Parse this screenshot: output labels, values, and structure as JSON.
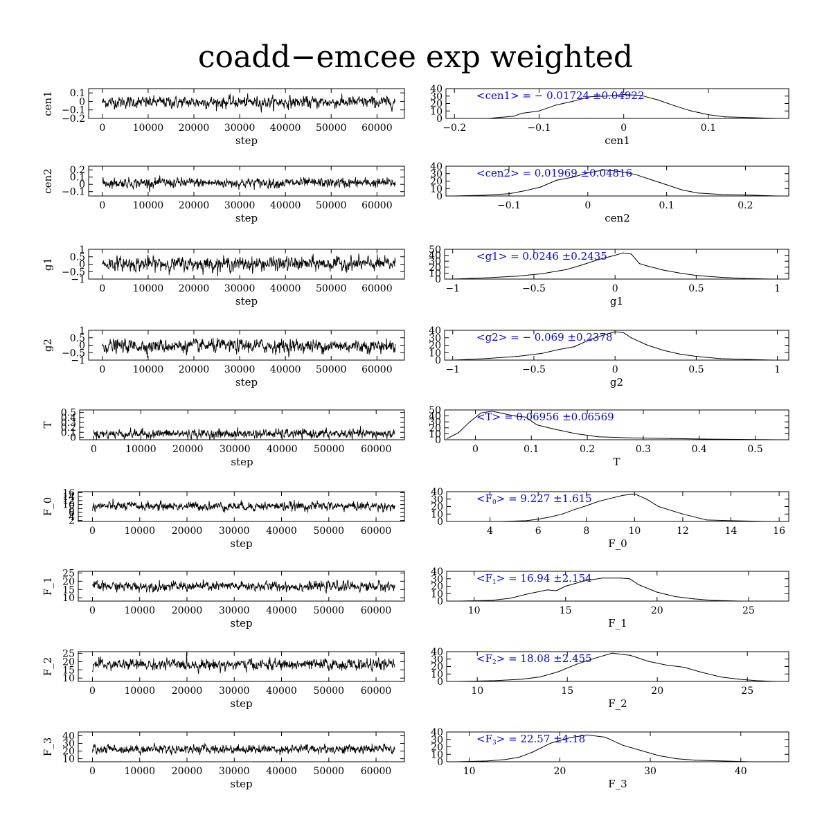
{
  "title": "coadd−emcee exp weighted",
  "colors": {
    "trace": "#000000",
    "stat": "#0000ff",
    "axes": "#000000"
  },
  "chart_data": [
    {
      "type": "line",
      "panel": "trace",
      "param": "cen1",
      "xlabel": "step",
      "ylabel": "cen1",
      "xlim": [
        -3000,
        66000
      ],
      "ylim": [
        -0.2,
        0.15
      ],
      "xticks": [
        0,
        10000,
        20000,
        30000,
        40000,
        50000,
        60000
      ],
      "xtick_labels": [
        "0",
        "10000",
        "20000",
        "30000",
        "40000",
        "50000",
        "60000"
      ],
      "yticks": [
        -0.2,
        -0.1,
        0,
        0.1
      ],
      "ytick_labels": [
        "−0.2",
        "−0.1",
        "0",
        "0.1"
      ],
      "series": [
        {
          "x_range": [
            0,
            64000
          ],
          "center": -0.01,
          "sigma": 0.049
        }
      ]
    },
    {
      "type": "line",
      "panel": "histogram",
      "param": "cen1",
      "xlabel": "cen1",
      "ylabel": "",
      "xlim": [
        -0.21,
        0.195
      ],
      "ylim": [
        0,
        40
      ],
      "xticks": [
        -0.2,
        -0.1,
        0,
        0.1
      ],
      "xtick_labels": [
        "−0.2",
        "−0.1",
        "0",
        "0.1"
      ],
      "yticks": [
        0,
        10,
        20,
        30,
        40
      ],
      "ytick_labels": [
        "0",
        "10",
        "20",
        "30",
        "40"
      ],
      "annotation": {
        "mean": "− 0.01724",
        "err": "0.04922",
        "sym": "cen1"
      },
      "x": [
        -0.19,
        -0.16,
        -0.13,
        -0.12,
        -0.1,
        -0.08,
        -0.06,
        -0.04,
        -0.02,
        0.0,
        0.02,
        0.04,
        0.06,
        0.08,
        0.1,
        0.12,
        0.15,
        0.18
      ],
      "values": [
        0,
        0,
        3,
        7,
        10,
        18,
        23,
        29,
        30,
        32,
        31,
        25,
        17,
        10,
        5,
        2,
        1,
        0
      ]
    },
    {
      "type": "line",
      "panel": "trace",
      "param": "cen2",
      "xlabel": "step",
      "ylabel": "cen2",
      "xlim": [
        -3000,
        66000
      ],
      "ylim": [
        -0.16,
        0.25
      ],
      "xticks": [
        0,
        10000,
        20000,
        30000,
        40000,
        50000,
        60000
      ],
      "xtick_labels": [
        "0",
        "10000",
        "20000",
        "30000",
        "40000",
        "50000",
        "60000"
      ],
      "yticks": [
        -0.1,
        0,
        0.1,
        0.2
      ],
      "ytick_labels": [
        "−0.1",
        "0",
        "0.1",
        "0.2"
      ],
      "series": [
        {
          "x_range": [
            0,
            64000
          ],
          "center": 0.02,
          "sigma": 0.048
        }
      ]
    },
    {
      "type": "line",
      "panel": "histogram",
      "param": "cen2",
      "xlabel": "cen2",
      "ylabel": "",
      "xlim": [
        -0.18,
        0.255
      ],
      "ylim": [
        0,
        40
      ],
      "xticks": [
        -0.1,
        0,
        0.1,
        0.2
      ],
      "xtick_labels": [
        "−0.1",
        "0",
        "0.1",
        "0.2"
      ],
      "yticks": [
        0,
        10,
        20,
        30,
        40
      ],
      "ytick_labels": [
        "0",
        "10",
        "20",
        "30",
        "40"
      ],
      "annotation": {
        "mean": "0.01969",
        "err": "0.04816",
        "sym": "cen2"
      },
      "x": [
        -0.17,
        -0.13,
        -0.1,
        -0.08,
        -0.06,
        -0.04,
        -0.02,
        0.0,
        0.02,
        0.04,
        0.06,
        0.08,
        0.1,
        0.12,
        0.14,
        0.17,
        0.21,
        0.24
      ],
      "values": [
        0,
        1,
        3,
        7,
        12,
        21,
        25,
        31,
        35,
        33,
        29,
        22,
        15,
        8,
        4,
        2,
        1,
        0
      ]
    },
    {
      "type": "line",
      "panel": "trace",
      "param": "g1",
      "xlabel": "step",
      "ylabel": "g1",
      "xlim": [
        -3000,
        66000
      ],
      "ylim": [
        -1,
        1
      ],
      "xticks": [
        0,
        10000,
        20000,
        30000,
        40000,
        50000,
        60000
      ],
      "xtick_labels": [
        "0",
        "10000",
        "20000",
        "30000",
        "40000",
        "50000",
        "60000"
      ],
      "yticks": [
        -1,
        -0.5,
        0,
        0.5,
        1
      ],
      "ytick_labels": [
        "−1",
        "−0.5",
        "0",
        "0.5",
        "1"
      ],
      "series": [
        {
          "x_range": [
            0,
            64000
          ],
          "center": 0.02,
          "sigma": 0.33
        }
      ]
    },
    {
      "type": "line",
      "panel": "histogram",
      "param": "g1",
      "xlabel": "g1",
      "ylabel": "",
      "xlim": [
        -1.05,
        1.07
      ],
      "ylim": [
        0,
        50
      ],
      "xticks": [
        -1,
        -0.5,
        0,
        0.5,
        1
      ],
      "xtick_labels": [
        "−1",
        "−0.5",
        "0",
        "0.5",
        "1"
      ],
      "yticks": [
        0,
        10,
        20,
        30,
        40,
        50
      ],
      "ytick_labels": [
        "0",
        "10",
        "20",
        "30",
        "40",
        "50"
      ],
      "annotation": {
        "mean": "0.0246",
        "err": "0.2435",
        "sym": "g1"
      },
      "x": [
        -1.0,
        -0.8,
        -0.6,
        -0.45,
        -0.3,
        -0.2,
        -0.1,
        0.0,
        0.05,
        0.1,
        0.15,
        0.2,
        0.3,
        0.4,
        0.5,
        0.65,
        0.8,
        0.97
      ],
      "values": [
        0,
        2,
        5,
        9,
        16,
        24,
        33,
        40,
        44,
        42,
        26,
        22,
        15,
        10,
        6,
        3,
        1,
        0
      ]
    },
    {
      "type": "line",
      "panel": "trace",
      "param": "g2",
      "xlabel": "step",
      "ylabel": "g2",
      "xlim": [
        -3000,
        66000
      ],
      "ylim": [
        -1,
        1
      ],
      "xticks": [
        0,
        10000,
        20000,
        30000,
        40000,
        50000,
        60000
      ],
      "xtick_labels": [
        "0",
        "10000",
        "20000",
        "30000",
        "40000",
        "50000",
        "60000"
      ],
      "yticks": [
        -1,
        -0.5,
        0,
        0.5,
        1
      ],
      "ytick_labels": [
        "−1",
        "−0.5",
        "0",
        "0.5",
        "1"
      ],
      "series": [
        {
          "x_range": [
            0,
            64000
          ],
          "center": -0.05,
          "sigma": 0.32
        }
      ]
    },
    {
      "type": "line",
      "panel": "histogram",
      "param": "g2",
      "xlabel": "g2",
      "ylabel": "",
      "xlim": [
        -1.05,
        1.07
      ],
      "ylim": [
        0,
        40
      ],
      "xticks": [
        -1,
        -0.5,
        0,
        0.5,
        1
      ],
      "xtick_labels": [
        "−1",
        "−0.5",
        "0",
        "0.5",
        "1"
      ],
      "yticks": [
        0,
        10,
        20,
        30,
        40
      ],
      "ytick_labels": [
        "0",
        "10",
        "20",
        "30",
        "40"
      ],
      "annotation": {
        "mean": "− 0.069",
        "err": "0.2378",
        "sym": "g2"
      },
      "x": [
        -1.0,
        -0.8,
        -0.6,
        -0.45,
        -0.35,
        -0.25,
        -0.15,
        -0.05,
        0.0,
        0.05,
        0.1,
        0.2,
        0.3,
        0.4,
        0.5,
        0.65,
        0.8,
        0.97
      ],
      "values": [
        0,
        2,
        5,
        9,
        14,
        18,
        28,
        35,
        38,
        37,
        30,
        20,
        13,
        8,
        5,
        2,
        1,
        0
      ]
    },
    {
      "type": "line",
      "panel": "trace",
      "param": "T",
      "xlabel": "step",
      "ylabel": "T",
      "xlim": [
        -3000,
        66000
      ],
      "ylim": [
        -0.05,
        0.55
      ],
      "xticks": [
        0,
        10000,
        20000,
        30000,
        40000,
        50000,
        60000
      ],
      "xtick_labels": [
        "0",
        "10000",
        "20000",
        "30000",
        "40000",
        "50000",
        "60000"
      ],
      "yticks": [
        0,
        0.1,
        0.2,
        0.3,
        0.4,
        0.5
      ],
      "ytick_labels": [
        "0",
        "0.1",
        "0.2",
        "0.3",
        "0.4",
        "0.5"
      ],
      "series": [
        {
          "x_range": [
            0,
            64000
          ],
          "center": 0.07,
          "sigma": 0.065
        }
      ]
    },
    {
      "type": "line",
      "panel": "histogram",
      "param": "T",
      "xlabel": "T",
      "ylabel": "",
      "xlim": [
        -0.055,
        0.56
      ],
      "ylim": [
        0,
        50
      ],
      "xticks": [
        0,
        0.1,
        0.2,
        0.3,
        0.4,
        0.5
      ],
      "xtick_labels": [
        "0",
        "0.1",
        "0.2",
        "0.3",
        "0.4",
        "0.5"
      ],
      "yticks": [
        0,
        10,
        20,
        30,
        40,
        50
      ],
      "ytick_labels": [
        "0",
        "10",
        "20",
        "30",
        "40",
        "50"
      ],
      "annotation": {
        "mean": "0.06956",
        "err": "0.06569",
        "sym": "T"
      },
      "x": [
        -0.05,
        -0.03,
        -0.01,
        0.01,
        0.03,
        0.05,
        0.07,
        0.09,
        0.11,
        0.14,
        0.18,
        0.22,
        0.28,
        0.35,
        0.42,
        0.54
      ],
      "values": [
        2,
        12,
        30,
        45,
        48,
        44,
        40,
        38,
        25,
        18,
        10,
        5,
        3,
        2,
        1,
        0
      ]
    },
    {
      "type": "line",
      "panel": "trace",
      "param": "F_0",
      "xlabel": "step",
      "ylabel": "F_0",
      "xlim": [
        -3000,
        66000
      ],
      "ylim": [
        1.5,
        16.5
      ],
      "xticks": [
        0,
        10000,
        20000,
        30000,
        40000,
        50000,
        60000
      ],
      "xtick_labels": [
        "0",
        "10000",
        "20000",
        "30000",
        "40000",
        "50000",
        "60000"
      ],
      "yticks": [
        2,
        4,
        6,
        8,
        10,
        12,
        14,
        16
      ],
      "ytick_labels": [
        "2",
        "4",
        "6",
        "8",
        "10",
        "12",
        "14",
        "16"
      ],
      "series": [
        {
          "x_range": [
            0,
            64000
          ],
          "center": 9.2,
          "sigma": 1.6
        }
      ]
    },
    {
      "type": "line",
      "panel": "histogram",
      "param": "F_0",
      "xlabel": "F_0",
      "ylabel": "",
      "xlim": [
        2.2,
        16.4
      ],
      "ylim": [
        0,
        40
      ],
      "xticks": [
        4,
        6,
        8,
        10,
        12,
        14,
        16
      ],
      "xtick_labels": [
        "4",
        "6",
        "8",
        "10",
        "12",
        "14",
        "16"
      ],
      "yticks": [
        0,
        10,
        20,
        30,
        40
      ],
      "ytick_labels": [
        "0",
        "10",
        "20",
        "30",
        "40"
      ],
      "annotation": {
        "mean": "9.227",
        "err": "1.615",
        "sym": "F",
        "sub": "0"
      },
      "x": [
        2.8,
        4.5,
        5.5,
        6.0,
        6.5,
        7.0,
        7.5,
        8.0,
        8.5,
        9.0,
        9.5,
        10.0,
        10.5,
        11.0,
        12.0,
        13.0,
        14.0,
        15.5
      ],
      "values": [
        0,
        0,
        1,
        3,
        6,
        10,
        16,
        21,
        27,
        31,
        35,
        37,
        30,
        20,
        10,
        2,
        1,
        0
      ]
    },
    {
      "type": "line",
      "panel": "trace",
      "param": "F_1",
      "xlabel": "step",
      "ylabel": "F_1",
      "xlim": [
        -3000,
        66000
      ],
      "ylim": [
        8,
        26
      ],
      "xticks": [
        0,
        10000,
        20000,
        30000,
        40000,
        50000,
        60000
      ],
      "xtick_labels": [
        "0",
        "10000",
        "20000",
        "30000",
        "40000",
        "50000",
        "60000"
      ],
      "yticks": [
        10,
        15,
        20,
        25
      ],
      "ytick_labels": [
        "10",
        "15",
        "20",
        "25"
      ],
      "series": [
        {
          "x_range": [
            0,
            64000
          ],
          "center": 16.9,
          "sigma": 2.1
        }
      ]
    },
    {
      "type": "line",
      "panel": "histogram",
      "param": "F_1",
      "xlabel": "F_1",
      "ylabel": "",
      "xlim": [
        8.5,
        27.2
      ],
      "ylim": [
        0,
        40
      ],
      "xticks": [
        10,
        15,
        20,
        25
      ],
      "xtick_labels": [
        "10",
        "15",
        "20",
        "25"
      ],
      "yticks": [
        0,
        10,
        20,
        30,
        40
      ],
      "ytick_labels": [
        "0",
        "10",
        "20",
        "30",
        "40"
      ],
      "annotation": {
        "mean": "16.94",
        "err": "2.154",
        "sym": "F",
        "sub": "1"
      },
      "x": [
        9.2,
        11.0,
        12.0,
        13.0,
        14.0,
        14.5,
        15.0,
        16.0,
        17.0,
        18.0,
        18.5,
        19.0,
        20.0,
        21.0,
        22.0,
        23.0,
        24.5,
        26.2
      ],
      "values": [
        0,
        1,
        4,
        10,
        15,
        14,
        20,
        27,
        31,
        31,
        30,
        22,
        12,
        6,
        3,
        1,
        0,
        0
      ]
    },
    {
      "type": "line",
      "panel": "trace",
      "param": "F_2",
      "xlabel": "step",
      "ylabel": "F_2",
      "xlim": [
        -3000,
        66000
      ],
      "ylim": [
        8,
        26
      ],
      "xticks": [
        0,
        10000,
        20000,
        30000,
        40000,
        50000,
        60000
      ],
      "xtick_labels": [
        "0",
        "10000",
        "20000",
        "30000",
        "40000",
        "50000",
        "60000"
      ],
      "yticks": [
        10,
        15,
        20,
        25
      ],
      "ytick_labels": [
        "10",
        "15",
        "20",
        "25"
      ],
      "series": [
        {
          "x_range": [
            0,
            64000
          ],
          "center": 18.1,
          "sigma": 2.4
        }
      ]
    },
    {
      "type": "line",
      "panel": "histogram",
      "param": "F_2",
      "xlabel": "F_2",
      "ylabel": "",
      "xlim": [
        8.3,
        27.3
      ],
      "ylim": [
        0,
        40
      ],
      "xticks": [
        10,
        15,
        20,
        25
      ],
      "xtick_labels": [
        "10",
        "15",
        "20",
        "25"
      ],
      "yticks": [
        0,
        10,
        20,
        30,
        40
      ],
      "ytick_labels": [
        "0",
        "10",
        "20",
        "30",
        "40"
      ],
      "annotation": {
        "mean": "18.08",
        "err": "2.455",
        "sym": "F",
        "sub": "2"
      },
      "x": [
        9.0,
        11.0,
        12.5,
        13.5,
        14.5,
        15.5,
        16.5,
        17.5,
        18.5,
        19.5,
        20.5,
        21.5,
        22.5,
        23.5,
        24.5,
        25.5,
        26.5
      ],
      "values": [
        0,
        1,
        3,
        6,
        13,
        23,
        31,
        38,
        35,
        27,
        22,
        19,
        12,
        6,
        3,
        1,
        0
      ]
    },
    {
      "type": "line",
      "panel": "trace",
      "param": "F_3",
      "xlabel": "step",
      "ylabel": "F_3",
      "xlim": [
        -3000,
        66000
      ],
      "ylim": [
        6,
        45
      ],
      "xticks": [
        0,
        10000,
        20000,
        30000,
        40000,
        50000,
        60000
      ],
      "xtick_labels": [
        "0",
        "10000",
        "20000",
        "30000",
        "40000",
        "50000",
        "60000"
      ],
      "yticks": [
        10,
        20,
        30,
        40
      ],
      "ytick_labels": [
        "10",
        "20",
        "30",
        "40"
      ],
      "series": [
        {
          "x_range": [
            0,
            64000
          ],
          "center": 22.6,
          "sigma": 4.2
        }
      ]
    },
    {
      "type": "line",
      "panel": "histogram",
      "param": "F_3",
      "xlabel": "F_3",
      "ylabel": "",
      "xlim": [
        7.5,
        45.3
      ],
      "ylim": [
        0,
        40
      ],
      "xticks": [
        10,
        20,
        30,
        40
      ],
      "xtick_labels": [
        "10",
        "20",
        "30",
        "40"
      ],
      "yticks": [
        0,
        10,
        20,
        30,
        40
      ],
      "ytick_labels": [
        "0",
        "10",
        "20",
        "30",
        "40"
      ],
      "annotation": {
        "mean": "22.57",
        "err": "4.18",
        "sym": "F",
        "sub": "3"
      },
      "x": [
        8.5,
        12.0,
        14.0,
        15.5,
        17.0,
        19.0,
        21.0,
        23.0,
        25.0,
        27.0,
        29.0,
        31.0,
        33.0,
        35.0,
        38.0,
        41.0,
        44.0
      ],
      "values": [
        0,
        1,
        3,
        6,
        13,
        25,
        32,
        36,
        33,
        22,
        15,
        8,
        4,
        2,
        1,
        0,
        0
      ]
    }
  ]
}
